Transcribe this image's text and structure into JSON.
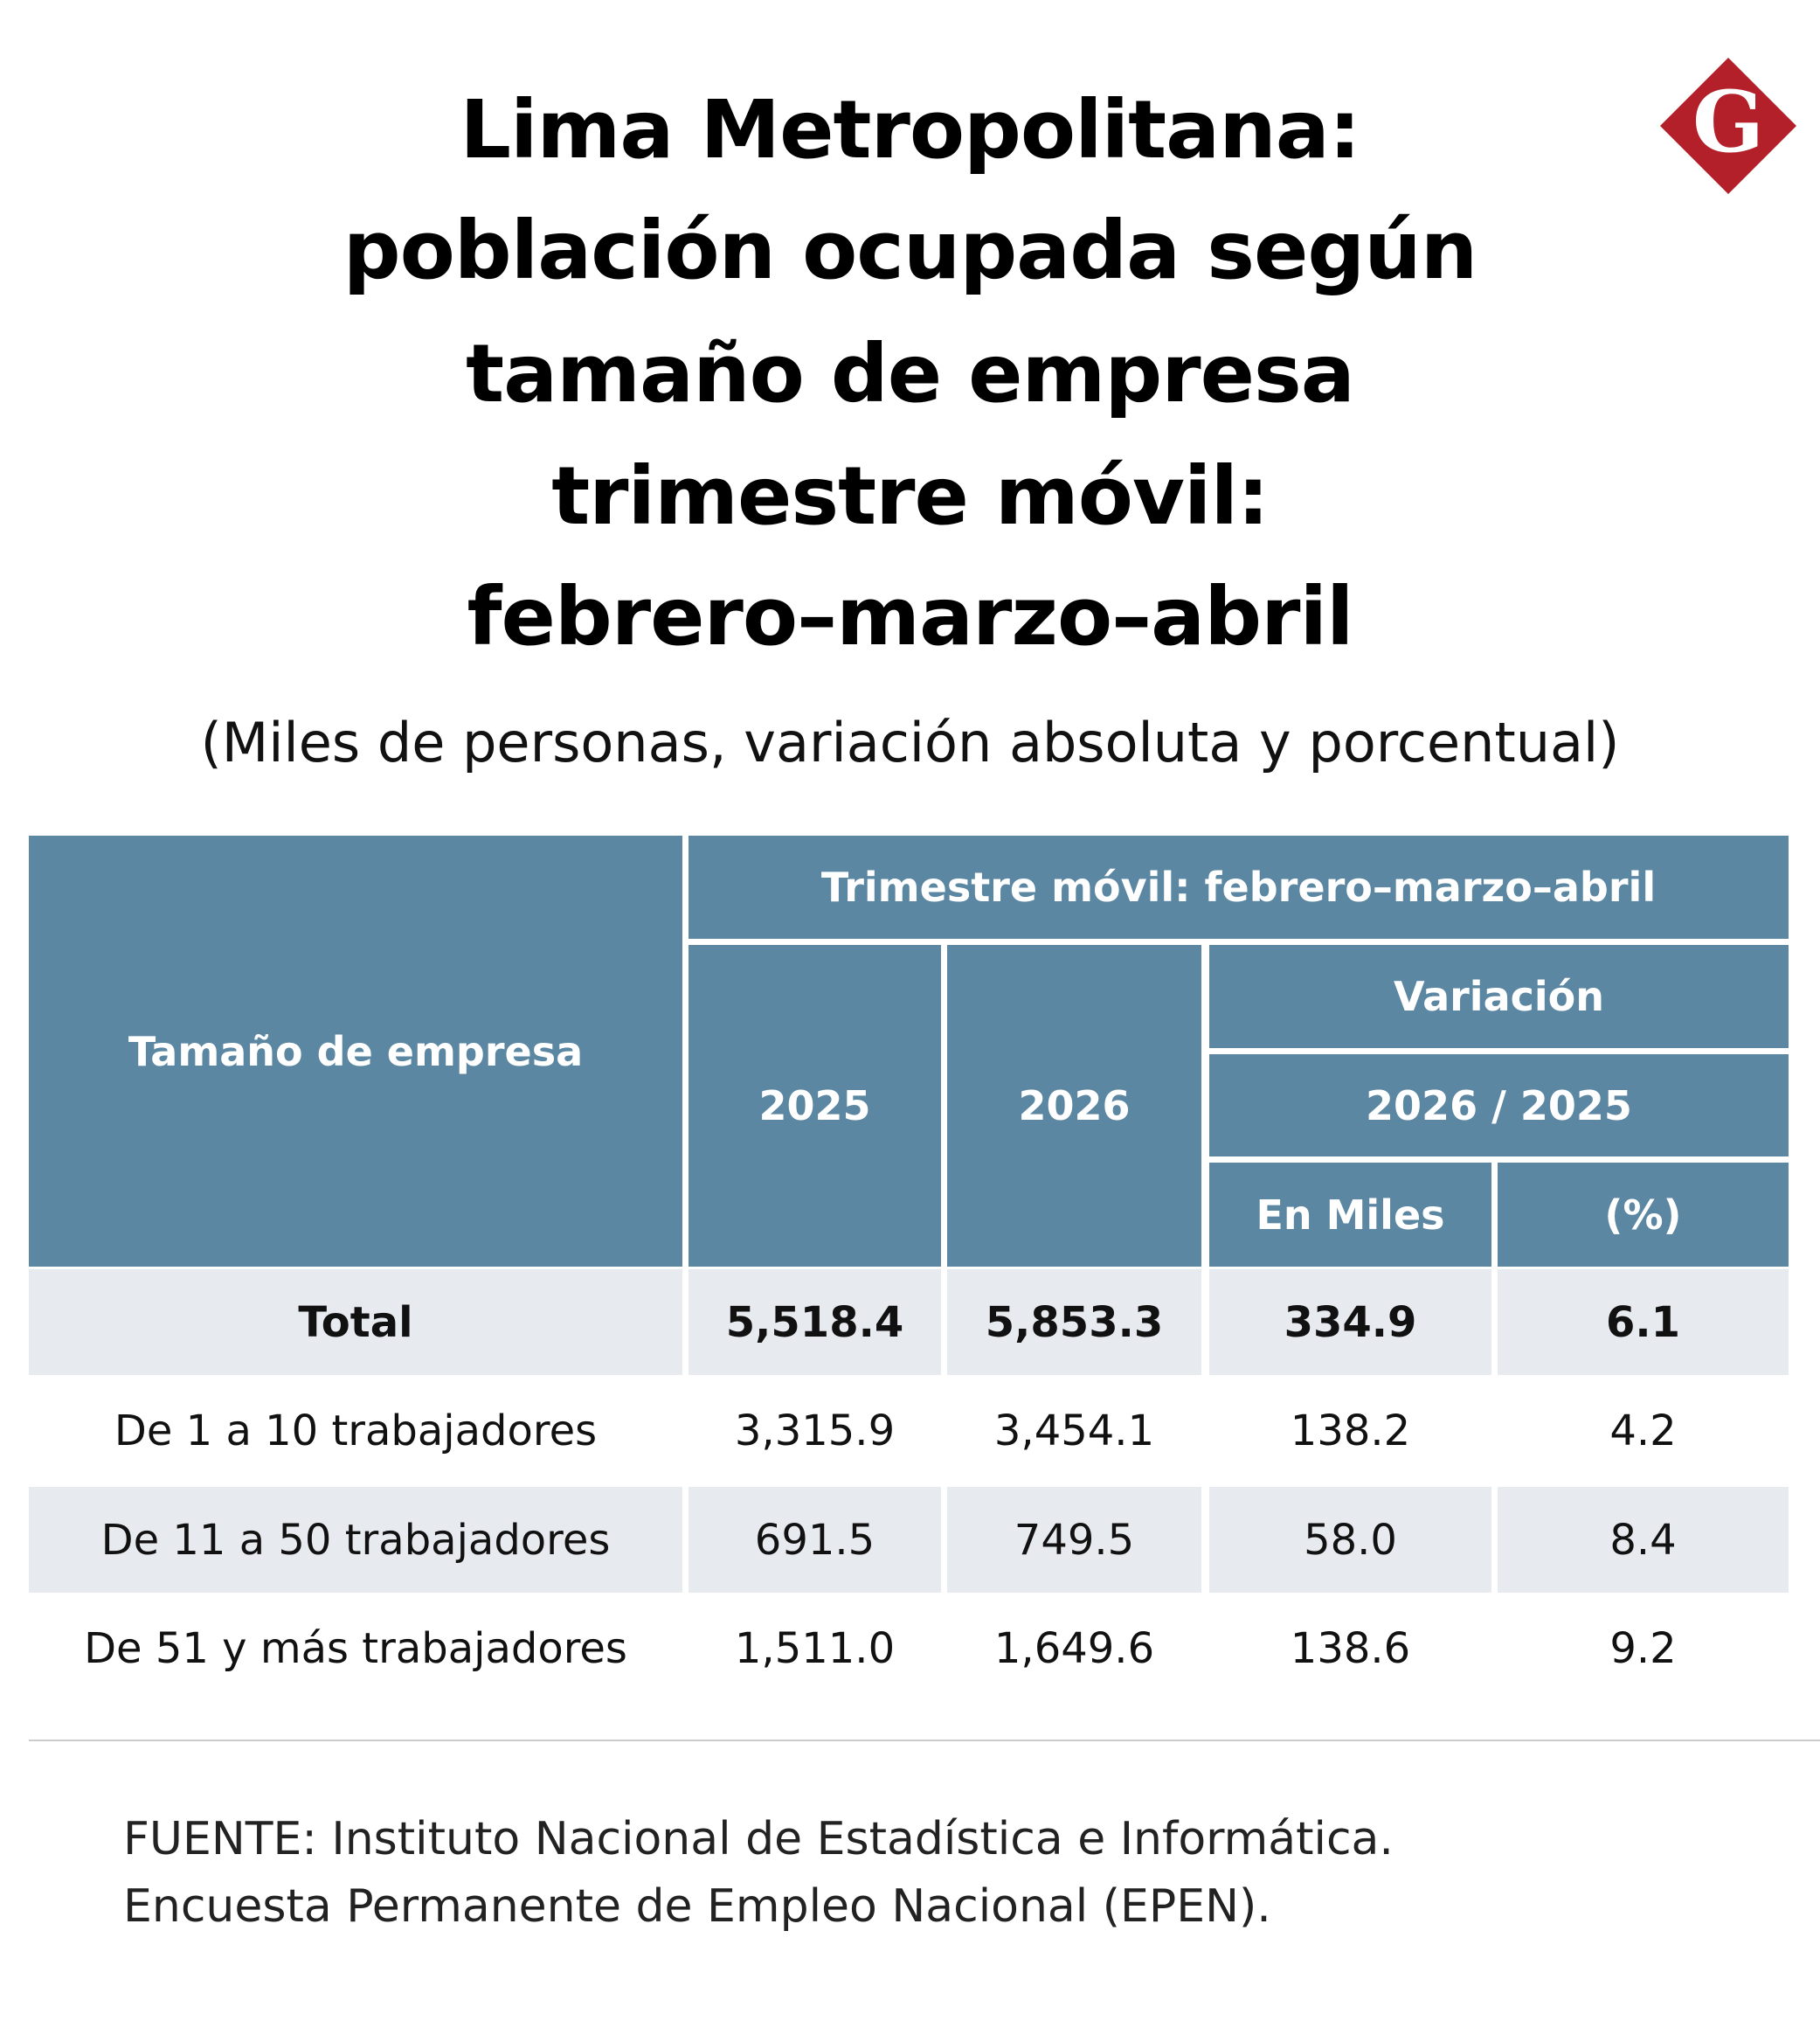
{
  "header": {
    "title": [
      "Lima Metropolitana:",
      "población ocupada según",
      "tamaño de empresa",
      "trimestre móvil:",
      "febrero–marzo–abril"
    ],
    "subtitle": "(Miles de personas, variación absoluta y porcentual)"
  },
  "logo": "G",
  "table": {
    "columns": {
      "label": "Tamaño de empresa",
      "period": "Trimestre móvil: febrero–marzo–abril",
      "years": [
        "2025",
        "2026"
      ],
      "variation": "Variación",
      "comparison": "2026 / 2025",
      "units": [
        "En Miles",
        "(%)"
      ]
    },
    "rows": [
      [
        "Total",
        "5,518.4",
        "5,853.3",
        "334.9",
        "6.1"
      ],
      [
        "De 1 a 10 trabajadores",
        "3,315.9",
        "3,454.1",
        "138.2",
        "4.2"
      ],
      [
        "De 11 a 50 trabajadores",
        "691.5",
        "749.5",
        "58.0",
        "8.4"
      ],
      [
        "De 51 y más trabajadores",
        "1,511.0",
        "1,649.6",
        "138.6",
        "9.2"
      ]
    ]
  },
  "source": [
    "FUENTE: Instituto Nacional de Estadística e Informática.",
    "Encuesta Permanente de Empleo Nacional (EPEN)."
  ]
}
